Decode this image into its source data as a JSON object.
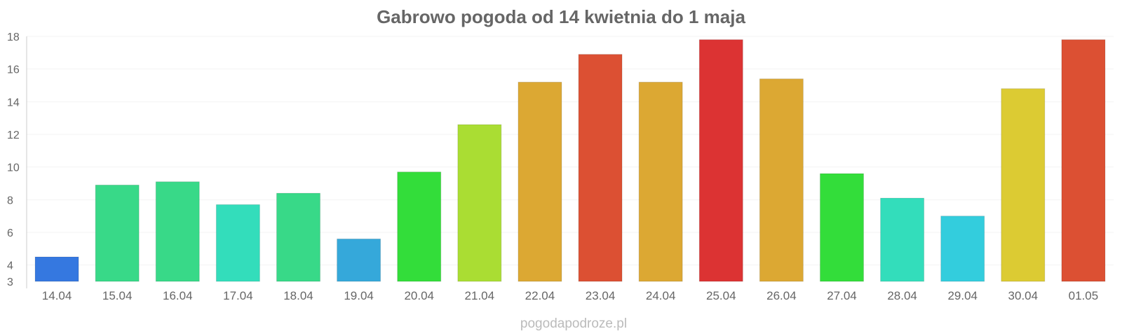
{
  "chart_data": {
    "type": "bar",
    "title": "Gabrowo pogoda od 14 kwietnia do 1 maja",
    "xlabel": "",
    "ylabel": "",
    "ylim": [
      3,
      18
    ],
    "yticks": [
      3,
      4,
      6,
      8,
      10,
      12,
      14,
      16,
      18
    ],
    "grid": true,
    "legend": "none",
    "categories": [
      "14.04",
      "15.04",
      "16.04",
      "17.04",
      "18.04",
      "19.04",
      "20.04",
      "21.04",
      "22.04",
      "23.04",
      "24.04",
      "25.04",
      "26.04",
      "27.04",
      "28.04",
      "29.04",
      "30.04",
      "01.05"
    ],
    "values": [
      4.5,
      8.9,
      9.1,
      7.7,
      8.4,
      5.6,
      9.7,
      12.6,
      15.2,
      16.9,
      15.2,
      17.8,
      15.4,
      9.6,
      8.1,
      7.0,
      14.8,
      17.8
    ],
    "colors": [
      "#3578e0",
      "#38d988",
      "#38d988",
      "#33ddbb",
      "#38d988",
      "#35a8da",
      "#33dd3a",
      "#aadd33",
      "#dca833",
      "#dc5033",
      "#dca833",
      "#dc3333",
      "#dca833",
      "#33dd3a",
      "#33ddbb",
      "#33cddd",
      "#dccb33",
      "#dc5033"
    ]
  },
  "footer": {
    "source": "pogodapodroze.pl"
  }
}
